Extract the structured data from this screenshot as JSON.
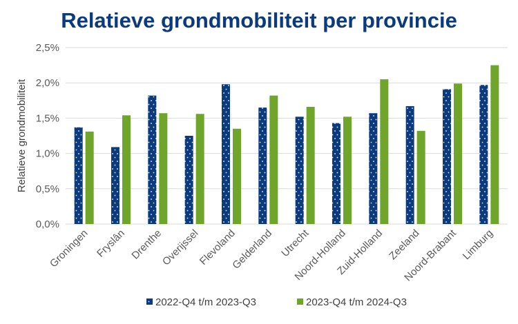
{
  "chart_data": {
    "type": "bar",
    "title": "Relatieve grondmobiliteit per provincie",
    "xlabel": "",
    "ylabel": "Relatieve grondmobiliteit",
    "ylim": [
      0,
      2.5
    ],
    "yticks": [
      "0,0%",
      "0,5%",
      "1,0%",
      "1,5%",
      "2,0%",
      "2,5%"
    ],
    "grid": true,
    "legend_position": "bottom",
    "categories": [
      "Groningen",
      "Fryslân",
      "Drenthe",
      "Overijssel",
      "Flevoland",
      "Gelderland",
      "Utrecht",
      "Noord-Holland",
      "Zuid-Holland",
      "Zeeland",
      "Noord-Brabant",
      "Limburg"
    ],
    "series": [
      {
        "name": "2022-Q4 t/m 2023-Q3",
        "color": "#0B3A7E",
        "pattern": "dotted",
        "values": [
          1.37,
          1.09,
          1.82,
          1.25,
          1.98,
          1.65,
          1.52,
          1.43,
          1.57,
          1.67,
          1.91,
          1.97
        ]
      },
      {
        "name": "2023-Q4 t/m 2024-Q3",
        "color": "#6FA52B",
        "values": [
          1.31,
          1.54,
          1.57,
          1.56,
          1.35,
          1.82,
          1.66,
          1.52,
          2.05,
          1.32,
          1.99,
          2.25
        ]
      }
    ]
  }
}
